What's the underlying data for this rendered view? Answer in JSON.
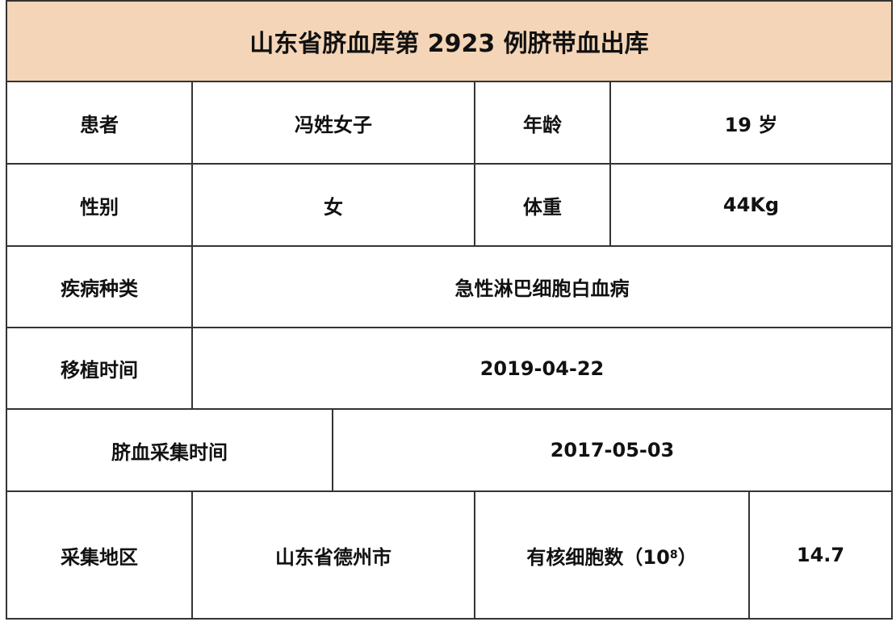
{
  "title": "山东省脐血库第 2923 例脐带血出库",
  "colors": {
    "header_bg": "#f4d5b7",
    "border": "#333333"
  },
  "rows": {
    "patient_label": "患者",
    "patient_value": "冯姓女子",
    "age_label": "年龄",
    "age_value": "19 岁",
    "sex_label": "性别",
    "sex_value": "女",
    "weight_label": "体重",
    "weight_value": "44Kg",
    "disease_label": "疾病种类",
    "disease_value": "急性淋巴细胞白血病",
    "transplant_label": "移植时间",
    "transplant_value": "2019-04-22",
    "collection_label": "脐血采集时间",
    "collection_value": "2017-05-03",
    "region_label": "采集地区",
    "region_value": "山东省德州市",
    "cells_label": "有核细胞数（10",
    "cells_exp": "8",
    "cells_label_end": "）",
    "cells_value": "14.7"
  }
}
